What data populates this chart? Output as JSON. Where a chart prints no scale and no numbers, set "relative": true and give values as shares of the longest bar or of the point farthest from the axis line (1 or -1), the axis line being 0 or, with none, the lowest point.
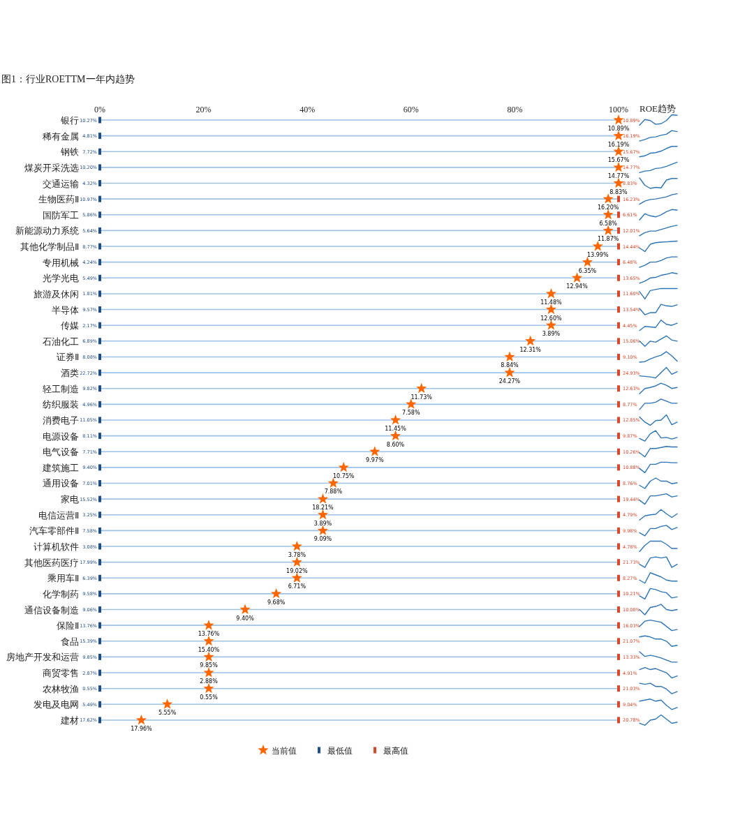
{
  "chart_data": [
    {
      "type": "scatter",
      "orientation": "horizontal",
      "title": "图1：行业ROETTM一年内趋势",
      "categories": [
        "银行",
        "稀有金属",
        "钢铁",
        "煤炭开采洗选",
        "交通运输",
        "生物医药Ⅱ",
        "国防军工",
        "新能源动力系统",
        "其他化学制品Ⅱ",
        "专用机械",
        "光学光电",
        "旅游及休闲",
        "半导体",
        "传媒",
        "石油化工",
        "证券Ⅱ",
        "酒类",
        "轻工制造",
        "纺织服装",
        "消费电子",
        "电源设备",
        "电气设备",
        "建筑施工",
        "通用设备",
        "家电",
        "电信运营Ⅱ",
        "汽车零部件Ⅱ",
        "计算机软件",
        "其他医药医疗",
        "乘用车Ⅱ",
        "化学制药",
        "通信设备制造",
        "保险Ⅱ",
        "食品",
        "房地产开发和运营",
        "商贸零售",
        "农林牧渔",
        "发电及电网",
        "建材"
      ],
      "xlim": [
        0,
        100
      ],
      "xticks": [
        {
          "value": 0,
          "label": "0%"
        },
        {
          "value": 20,
          "label": "20%"
        },
        {
          "value": 40,
          "label": "40%"
        },
        {
          "value": 60,
          "label": "60%"
        },
        {
          "value": 80,
          "label": "80%"
        },
        {
          "value": 100,
          "label": "100%"
        }
      ],
      "grid": "y",
      "legend": "bottom",
      "series": [
        {
          "name": "当前值",
          "color": "#ff6600",
          "marker": "star",
          "values": [
            100,
            100,
            100,
            100,
            100,
            98,
            98,
            98,
            96,
            94,
            92,
            87,
            87,
            87,
            83,
            79,
            79,
            62,
            60,
            57,
            57,
            53,
            47,
            45,
            43,
            43,
            43,
            38,
            38,
            38,
            34,
            28,
            21,
            21,
            21,
            21,
            21,
            13,
            8
          ]
        },
        {
          "name": "最低值",
          "color": "#1f4e8c",
          "marker": "square",
          "values": [
            0,
            0,
            0,
            0,
            0,
            0,
            0,
            0,
            0,
            0,
            0,
            0,
            0,
            0,
            0,
            0,
            0,
            0,
            0,
            0,
            0,
            0,
            0,
            0,
            0,
            0,
            0,
            0,
            0,
            0,
            0,
            0,
            0,
            0,
            0,
            0,
            0,
            0,
            0
          ]
        },
        {
          "name": "最高值",
          "color": "#d9482b",
          "marker": "square",
          "values": [
            null,
            null,
            null,
            null,
            null,
            100,
            100,
            100,
            100,
            100,
            100,
            100,
            100,
            100,
            100,
            100,
            100,
            100,
            100,
            100,
            100,
            100,
            100,
            100,
            100,
            100,
            100,
            100,
            100,
            100,
            100,
            100,
            100,
            100,
            100,
            100,
            100,
            100,
            100
          ]
        }
      ],
      "annotations": [
        {
          "text": "10.89%",
          "x": 100,
          "y": "银行"
        },
        {
          "text": "16.19%",
          "x": 100,
          "y": "稀有金属"
        },
        {
          "text": "15.67%",
          "x": 100,
          "y": "钢铁"
        },
        {
          "text": "14.77%",
          "x": 100,
          "y": "煤炭开采洗选"
        },
        {
          "text": "8.83%",
          "x": 100,
          "y": "交通运输"
        },
        {
          "text": "16.20%",
          "x": 98,
          "y": "生物医药Ⅱ"
        },
        {
          "text": "6.58%",
          "x": 98,
          "y": "国防军工"
        },
        {
          "text": "11.87%",
          "x": 98,
          "y": "新能源动力系统"
        },
        {
          "text": "13.99%",
          "x": 96,
          "y": "其他化学制品Ⅱ"
        },
        {
          "text": "6.35%",
          "x": 94,
          "y": "专用机械"
        },
        {
          "text": "12.94%",
          "x": 92,
          "y": "光学光电"
        },
        {
          "text": "11.48%",
          "x": 87,
          "y": "旅游及休闲"
        },
        {
          "text": "12.60%",
          "x": 87,
          "y": "半导体"
        },
        {
          "text": "3.89%",
          "x": 87,
          "y": "传媒"
        },
        {
          "text": "12.31%",
          "x": 83,
          "y": "石油化工"
        },
        {
          "text": "8.84%",
          "x": 79,
          "y": "证券Ⅱ"
        },
        {
          "text": "24.27%",
          "x": 79,
          "y": "酒类"
        },
        {
          "text": "11.73%",
          "x": 62,
          "y": "轻工制造"
        },
        {
          "text": "7.58%",
          "x": 60,
          "y": "纺织服装"
        },
        {
          "text": "11.45%",
          "x": 57,
          "y": "消费电子"
        },
        {
          "text": "8.60%",
          "x": 57,
          "y": "电源设备"
        },
        {
          "text": "9.97%",
          "x": 53,
          "y": "电气设备"
        },
        {
          "text": "10.75%",
          "x": 47,
          "y": "建筑施工"
        },
        {
          "text": "7.88%",
          "x": 45,
          "y": "通用设备"
        },
        {
          "text": "18.21%",
          "x": 43,
          "y": "家电"
        },
        {
          "text": "3.89%",
          "x": 43,
          "y": "电信运营Ⅱ"
        },
        {
          "text": "9.09%",
          "x": 43,
          "y": "汽车零部件Ⅱ"
        },
        {
          "text": "3.78%",
          "x": 38,
          "y": "计算机软件"
        },
        {
          "text": "19.02%",
          "x": 38,
          "y": "其他医药医疗"
        },
        {
          "text": "6.71%",
          "x": 38,
          "y": "乘用车Ⅱ"
        },
        {
          "text": "9.68%",
          "x": 34,
          "y": "化学制药"
        },
        {
          "text": "9.40%",
          "x": 28,
          "y": "通信设备制造"
        },
        {
          "text": "13.76%",
          "x": 21,
          "y": "保险Ⅱ"
        },
        {
          "text": "15.40%",
          "x": 21,
          "y": "食品"
        },
        {
          "text": "9.85%",
          "x": 21,
          "y": "房地产开发和运营"
        },
        {
          "text": "2.88%",
          "x": 21,
          "y": "商贸零售"
        },
        {
          "text": "0.55%",
          "x": 21,
          "y": "农林牧渔"
        },
        {
          "text": "5.55%",
          "x": 13,
          "y": "发电及电网"
        },
        {
          "text": "17.96%",
          "x": 8,
          "y": "建材"
        },
        {
          "text": "10.27%",
          "x": 0,
          "y": "银行"
        },
        {
          "text": "4.81%",
          "x": 0,
          "y": "稀有金属"
        },
        {
          "text": "7.72%",
          "x": 0,
          "y": "钢铁"
        },
        {
          "text": "10.20%",
          "x": 0,
          "y": "煤炭开采洗选"
        },
        {
          "text": "4.32%",
          "x": 0,
          "y": "交通运输"
        },
        {
          "text": "10.97%",
          "x": 0,
          "y": "生物医药Ⅱ"
        },
        {
          "text": "5.86%",
          "x": 0,
          "y": "国防军工"
        },
        {
          "text": "5.64%",
          "x": 0,
          "y": "新能源动力系统"
        },
        {
          "text": "8.77%",
          "x": 0,
          "y": "其他化学制品Ⅱ"
        },
        {
          "text": "4.24%",
          "x": 0,
          "y": "专用机械"
        },
        {
          "text": "5.49%",
          "x": 0,
          "y": "光学光电"
        },
        {
          "text": "1.81%",
          "x": 0,
          "y": "旅游及休闲"
        },
        {
          "text": "9.57%",
          "x": 0,
          "y": "半导体"
        },
        {
          "text": "2.17%",
          "x": 0,
          "y": "传媒"
        },
        {
          "text": "6.89%",
          "x": 0,
          "y": "石油化工"
        },
        {
          "text": "8.08%",
          "x": 0,
          "y": "证券Ⅱ"
        },
        {
          "text": "22.72%",
          "x": 0,
          "y": "酒类"
        },
        {
          "text": "9.82%",
          "x": 0,
          "y": "轻工制造"
        },
        {
          "text": "4.96%",
          "x": 0,
          "y": "纺织服装"
        },
        {
          "text": "11.05%",
          "x": 0,
          "y": "消费电子"
        },
        {
          "text": "8.11%",
          "x": 0,
          "y": "电源设备"
        },
        {
          "text": "7.71%",
          "x": 0,
          "y": "电气设备"
        },
        {
          "text": "9.40%",
          "x": 0,
          "y": "建筑施工"
        },
        {
          "text": "7.01%",
          "x": 0,
          "y": "通用设备"
        },
        {
          "text": "15.52%",
          "x": 0,
          "y": "家电"
        },
        {
          "text": "3.25%",
          "x": 0,
          "y": "电信运营Ⅱ"
        },
        {
          "text": "7.58%",
          "x": 0,
          "y": "汽车零部件Ⅱ"
        },
        {
          "text": "3.08%",
          "x": 0,
          "y": "计算机软件"
        },
        {
          "text": "17.99%",
          "x": 0,
          "y": "其他医药医疗"
        },
        {
          "text": "6.39%",
          "x": 0,
          "y": "乘用车Ⅱ"
        },
        {
          "text": "9.58%",
          "x": 0,
          "y": "化学制药"
        },
        {
          "text": "9.06%",
          "x": 0,
          "y": "通信设备制造"
        },
        {
          "text": "13.76%",
          "x": 0,
          "y": "保险Ⅱ"
        },
        {
          "text": "15.39%",
          "x": 0,
          "y": "食品"
        },
        {
          "text": "9.85%",
          "x": 0,
          "y": "房地产开发和运营"
        },
        {
          "text": "2.87%",
          "x": 0,
          "y": "商贸零售"
        },
        {
          "text": "0.55%",
          "x": 0,
          "y": "农林牧渔"
        },
        {
          "text": "5.49%",
          "x": 0,
          "y": "发电及电网"
        },
        {
          "text": "17.62%",
          "x": 0,
          "y": "建材"
        },
        {
          "text": "10.89%",
          "x": 100,
          "y": "银行"
        },
        {
          "text": "16.19%",
          "x": 100,
          "y": "稀有金属"
        },
        {
          "text": "15.67%",
          "x": 100,
          "y": "钢铁"
        },
        {
          "text": "14.77%",
          "x": 100,
          "y": "煤炭开采洗选"
        },
        {
          "text": "8.83%",
          "x": 100,
          "y": "交通运输"
        },
        {
          "text": "16.23%",
          "x": 100,
          "y": "生物医药Ⅱ"
        },
        {
          "text": "6.61%",
          "x": 100,
          "y": "国防军工"
        },
        {
          "text": "12.01%",
          "x": 100,
          "y": "新能源动力系统"
        },
        {
          "text": "14.44%",
          "x": 100,
          "y": "其他化学制品Ⅱ"
        },
        {
          "text": "6.48%",
          "x": 100,
          "y": "专用机械"
        },
        {
          "text": "13.65%",
          "x": 100,
          "y": "光学光电"
        },
        {
          "text": "11.60%",
          "x": 100,
          "y": "旅游及休闲"
        },
        {
          "text": "13.54%",
          "x": 100,
          "y": "半导体"
        },
        {
          "text": "4.45%",
          "x": 100,
          "y": "传媒"
        },
        {
          "text": "15.06%",
          "x": 100,
          "y": "石油化工"
        },
        {
          "text": "9.10%",
          "x": 100,
          "y": "证券Ⅱ"
        },
        {
          "text": "24.93%",
          "x": 100,
          "y": "酒类"
        },
        {
          "text": "12.63%",
          "x": 100,
          "y": "轻工制造"
        },
        {
          "text": "8.77%",
          "x": 100,
          "y": "纺织服装"
        },
        {
          "text": "12.85%",
          "x": 100,
          "y": "消费电子"
        },
        {
          "text": "9.87%",
          "x": 100,
          "y": "电源设备"
        },
        {
          "text": "10.26%",
          "x": 100,
          "y": "电气设备"
        },
        {
          "text": "10.88%",
          "x": 100,
          "y": "建筑施工"
        },
        {
          "text": "8.76%",
          "x": 100,
          "y": "通用设备"
        },
        {
          "text": "19.44%",
          "x": 100,
          "y": "家电"
        },
        {
          "text": "4.79%",
          "x": 100,
          "y": "电信运营Ⅱ"
        },
        {
          "text": "9.98%",
          "x": 100,
          "y": "汽车零部件Ⅱ"
        },
        {
          "text": "4.78%",
          "x": 100,
          "y": "计算机软件"
        },
        {
          "text": "21.73%",
          "x": 100,
          "y": "其他医药医疗"
        },
        {
          "text": "8.27%",
          "x": 100,
          "y": "乘用车Ⅱ"
        },
        {
          "text": "10.21%",
          "x": 100,
          "y": "化学制药"
        },
        {
          "text": "10.08%",
          "x": 100,
          "y": "通信设备制造"
        },
        {
          "text": "16.03%",
          "x": 100,
          "y": "保险Ⅱ"
        },
        {
          "text": "21.07%",
          "x": 100,
          "y": "食品"
        },
        {
          "text": "13.33%",
          "x": 100,
          "y": "房地产开发和运营"
        },
        {
          "text": "4.91%",
          "x": 100,
          "y": "商贸零售"
        },
        {
          "text": "21.03%",
          "x": 100,
          "y": "农林牧渔"
        },
        {
          "text": "9.04%",
          "x": 100,
          "y": "发电及电网"
        },
        {
          "text": "20.78%",
          "x": 100,
          "y": "建材"
        }
      ]
    },
    {
      "type": "line",
      "title": "ROE趋势",
      "relative": true,
      "categories": [
        null,
        null,
        null,
        null,
        null,
        null,
        null,
        null
      ],
      "color": "#2e75b6",
      "values": [
        0,
        0.55,
        0.45,
        0.09,
        0.15,
        0.45,
        1,
        0.95
      ]
    },
    {
      "type": "line",
      "relative": true,
      "categories": [
        null,
        null,
        null,
        null,
        null,
        null,
        null,
        null
      ],
      "color": "#2e75b6",
      "values": [
        0,
        0.15,
        0.35,
        0.4,
        0.55,
        0.65,
        1,
        0.9
      ]
    },
    {
      "type": "line",
      "relative": true,
      "categories": [
        null,
        null,
        null,
        null,
        null,
        null,
        null,
        null
      ],
      "color": "#2e75b6",
      "values": [
        0,
        0.1,
        0.35,
        0.4,
        0.55,
        0.8,
        1,
        1
      ]
    },
    {
      "type": "line",
      "relative": true,
      "categories": [
        null,
        null,
        null,
        null,
        null,
        null,
        null,
        null
      ],
      "color": "#2e75b6",
      "values": [
        0,
        0.15,
        0.2,
        0.4,
        0.45,
        0.6,
        0.8,
        1
      ]
    },
    {
      "type": "line",
      "relative": true,
      "categories": [
        null,
        null,
        null,
        null,
        null,
        null,
        null,
        null
      ],
      "color": "#2e75b6",
      "values": [
        1,
        0.3,
        0,
        0.1,
        0.05,
        0.8,
        0.95,
        0.95
      ]
    },
    {
      "type": "line",
      "relative": true,
      "categories": [
        null,
        null,
        null,
        null,
        null,
        null,
        null,
        null
      ],
      "color": "#2e75b6",
      "values": [
        0,
        0.3,
        0.45,
        0.5,
        0.6,
        0.7,
        0.9,
        1
      ]
    },
    {
      "type": "line",
      "relative": true,
      "categories": [
        null,
        null,
        null,
        null,
        null,
        null,
        null,
        null
      ],
      "color": "#2e75b6",
      "values": [
        0,
        0.6,
        0.4,
        0.3,
        0.5,
        0.8,
        1,
        0.95
      ]
    },
    {
      "type": "line",
      "relative": true,
      "categories": [
        null,
        null,
        null,
        null,
        null,
        null,
        null,
        null
      ],
      "color": "#2e75b6",
      "values": [
        0,
        0.3,
        0.45,
        0.45,
        0.6,
        0.75,
        0.9,
        1
      ]
    },
    {
      "type": "line",
      "relative": true,
      "categories": [
        null,
        null,
        null,
        null,
        null,
        null,
        null,
        null
      ],
      "color": "#2e75b6",
      "values": [
        0.35,
        0,
        0.7,
        0.85,
        0.9,
        0.93,
        0.97,
        1
      ]
    },
    {
      "type": "line",
      "relative": true,
      "categories": [
        null,
        null,
        null,
        null,
        null,
        null,
        null,
        null
      ],
      "color": "#2e75b6",
      "values": [
        0,
        0.2,
        0.5,
        0.5,
        0.65,
        0.9,
        1,
        1
      ]
    },
    {
      "type": "line",
      "relative": true,
      "categories": [
        null,
        null,
        null,
        null,
        null,
        null,
        null,
        null
      ],
      "color": "#2e75b6",
      "values": [
        0,
        0.2,
        0.5,
        0.55,
        0.75,
        0.85,
        1,
        0.9
      ]
    },
    {
      "type": "line",
      "relative": true,
      "categories": [
        null,
        null,
        null,
        null,
        null,
        null,
        null,
        null
      ],
      "color": "#2e75b6",
      "values": [
        0.7,
        0,
        0.8,
        0.9,
        1,
        1,
        1,
        1
      ]
    },
    {
      "type": "line",
      "relative": true,
      "categories": [
        null,
        null,
        null,
        null,
        null,
        null,
        null,
        null
      ],
      "color": "#2e75b6",
      "values": [
        0.6,
        0,
        0.2,
        0.2,
        1,
        0.85,
        0.8,
        0.95
      ]
    },
    {
      "type": "line",
      "relative": true,
      "categories": [
        null,
        null,
        null,
        null,
        null,
        null,
        null,
        null
      ],
      "color": "#2e75b6",
      "values": [
        0,
        0.4,
        0.35,
        0.3,
        1,
        0.6,
        0.5,
        0.7
      ]
    },
    {
      "type": "line",
      "relative": true,
      "categories": [
        null,
        null,
        null,
        null,
        null,
        null,
        null,
        null
      ],
      "color": "#2e75b6",
      "values": [
        0.5,
        0,
        0.5,
        0.4,
        0.7,
        1,
        0.6,
        0.5
      ]
    },
    {
      "type": "line",
      "relative": true,
      "categories": [
        null,
        null,
        null,
        null,
        null,
        null,
        null,
        null
      ],
      "color": "#2e75b6",
      "values": [
        0,
        0.05,
        0.3,
        0.5,
        0.65,
        1,
        0.6,
        0.1
      ]
    },
    {
      "type": "line",
      "relative": true,
      "categories": [
        null,
        null,
        null,
        null,
        null,
        null,
        null,
        null
      ],
      "color": "#2e75b6",
      "values": [
        0.2,
        0.15,
        0.1,
        0,
        0.5,
        1,
        0.35,
        0.6
      ]
    },
    {
      "type": "line",
      "relative": true,
      "categories": [
        null,
        null,
        null,
        null,
        null,
        null,
        null,
        null
      ],
      "color": "#2e75b6",
      "values": [
        0,
        0.5,
        0.6,
        0.75,
        1,
        0.8,
        0.5,
        0.6
      ]
    },
    {
      "type": "line",
      "relative": true,
      "categories": [
        null,
        null,
        null,
        null,
        null,
        null,
        null,
        null
      ],
      "color": "#2e75b6",
      "values": [
        0,
        0.6,
        0.6,
        0.7,
        1,
        0.8,
        0.6,
        0.6
      ]
    },
    {
      "type": "line",
      "relative": true,
      "categories": [
        null,
        null,
        null,
        null,
        null,
        null,
        null,
        null
      ],
      "color": "#2e75b6",
      "values": [
        0.8,
        0.3,
        0,
        0.45,
        0.5,
        1,
        0.05,
        0.3
      ]
    },
    {
      "type": "line",
      "relative": true,
      "categories": [
        null,
        null,
        null,
        null,
        null,
        null,
        null,
        null
      ],
      "color": "#2e75b6",
      "values": [
        0.25,
        0,
        0.7,
        1,
        0.3,
        0.35,
        0.2,
        0.35
      ]
    },
    {
      "type": "line",
      "relative": true,
      "categories": [
        null,
        null,
        null,
        null,
        null,
        null,
        null,
        null
      ],
      "color": "#2e75b6",
      "values": [
        0.4,
        0,
        0.8,
        0.8,
        0.9,
        1,
        0.95,
        0.95
      ]
    },
    {
      "type": "line",
      "relative": true,
      "categories": [
        null,
        null,
        null,
        null,
        null,
        null,
        null,
        null
      ],
      "color": "#2e75b6",
      "values": [
        0.4,
        0,
        0.8,
        0.8,
        1,
        1,
        0.95,
        0.95
      ]
    },
    {
      "type": "line",
      "relative": true,
      "categories": [
        null,
        null,
        null,
        null,
        null,
        null,
        null,
        null
      ],
      "color": "#2e75b6",
      "values": [
        0.3,
        0,
        0.7,
        1,
        0.7,
        0.7,
        0.45,
        0.55
      ]
    },
    {
      "type": "line",
      "relative": true,
      "categories": [
        null,
        null,
        null,
        null,
        null,
        null,
        null,
        null
      ],
      "color": "#2e75b6",
      "values": [
        0.4,
        0,
        0.8,
        0.8,
        0.9,
        1,
        0.7,
        0.8
      ]
    },
    {
      "type": "line",
      "relative": true,
      "categories": [
        null,
        null,
        null,
        null,
        null,
        null,
        null,
        null
      ],
      "color": "#2e75b6",
      "values": [
        0,
        0.4,
        0.5,
        0.55,
        1,
        0.6,
        0.25,
        0.6
      ]
    },
    {
      "type": "line",
      "relative": true,
      "categories": [
        null,
        null,
        null,
        null,
        null,
        null,
        null,
        null
      ],
      "color": "#2e75b6",
      "values": [
        0.3,
        0,
        0.7,
        0.7,
        0.9,
        1,
        0.6,
        0.8
      ]
    },
    {
      "type": "line",
      "relative": true,
      "categories": [
        null,
        null,
        null,
        null,
        null,
        null,
        null,
        null
      ],
      "color": "#2e75b6",
      "values": [
        0,
        0.6,
        1,
        1,
        1,
        0.7,
        0.3,
        0.3
      ]
    },
    {
      "type": "line",
      "relative": true,
      "categories": [
        null,
        null,
        null,
        null,
        null,
        null,
        null,
        null
      ],
      "color": "#2e75b6",
      "values": [
        0.3,
        0,
        0.9,
        1,
        0.9,
        1,
        0,
        0.3
      ]
    },
    {
      "type": "line",
      "relative": true,
      "categories": [
        null,
        null,
        null,
        null,
        null,
        null,
        null,
        null
      ],
      "color": "#2e75b6",
      "values": [
        0.3,
        0,
        1,
        0.8,
        0.6,
        0.3,
        0.2,
        0.2
      ]
    },
    {
      "type": "line",
      "relative": true,
      "categories": [
        null,
        null,
        null,
        null,
        null,
        null,
        null,
        null
      ],
      "color": "#2e75b6",
      "values": [
        0.3,
        0,
        1,
        0.9,
        0.7,
        0.6,
        0.1,
        0.2
      ]
    },
    {
      "type": "line",
      "relative": true,
      "categories": [
        null,
        null,
        null,
        null,
        null,
        null,
        null,
        null
      ],
      "color": "#2e75b6",
      "values": [
        0.5,
        0,
        0.7,
        0.8,
        1,
        0.5,
        0.4,
        0.5
      ]
    },
    {
      "type": "line",
      "relative": true,
      "categories": [
        null,
        null,
        null,
        null,
        null,
        null,
        null,
        null
      ],
      "color": "#2e75b6",
      "values": [
        0.4,
        0.9,
        1,
        0.9,
        0.8,
        0.4,
        0,
        0.1
      ]
    },
    {
      "type": "line",
      "relative": true,
      "categories": [
        null,
        null,
        null,
        null,
        null,
        null,
        null,
        null
      ],
      "color": "#2e75b6",
      "values": [
        0.9,
        1,
        0.9,
        0.7,
        0.7,
        0.5,
        0,
        0.1
      ]
    },
    {
      "type": "line",
      "relative": true,
      "categories": [
        null,
        null,
        null,
        null,
        null,
        null,
        null,
        null
      ],
      "color": "#2e75b6",
      "values": [
        1,
        0.55,
        0.65,
        0.55,
        0.4,
        0.2,
        0,
        0
      ]
    },
    {
      "type": "line",
      "relative": true,
      "categories": [
        null,
        null,
        null,
        null,
        null,
        null,
        null,
        null
      ],
      "color": "#2e75b6",
      "values": [
        0.8,
        1,
        0.8,
        0.9,
        0.7,
        0.5,
        0,
        0.2
      ]
    },
    {
      "type": "line",
      "relative": true,
      "categories": [
        null,
        null,
        null,
        null,
        null,
        null,
        null,
        null
      ],
      "color": "#2e75b6",
      "values": [
        1,
        0.9,
        1,
        0.7,
        0.7,
        0.45,
        0,
        0.2
      ]
    },
    {
      "type": "line",
      "relative": true,
      "categories": [
        null,
        null,
        null,
        null,
        null,
        null,
        null,
        null
      ],
      "color": "#2e75b6",
      "values": [
        0.8,
        0.9,
        1,
        0.8,
        0.9,
        0.4,
        0,
        0.2
      ]
    },
    {
      "type": "line",
      "relative": true,
      "categories": [
        null,
        null,
        null,
        null,
        null,
        null,
        null,
        null
      ],
      "color": "#2e75b6",
      "values": [
        0.2,
        0,
        0.5,
        0.6,
        1,
        0.6,
        0.2,
        0.3
      ]
    }
  ]
}
